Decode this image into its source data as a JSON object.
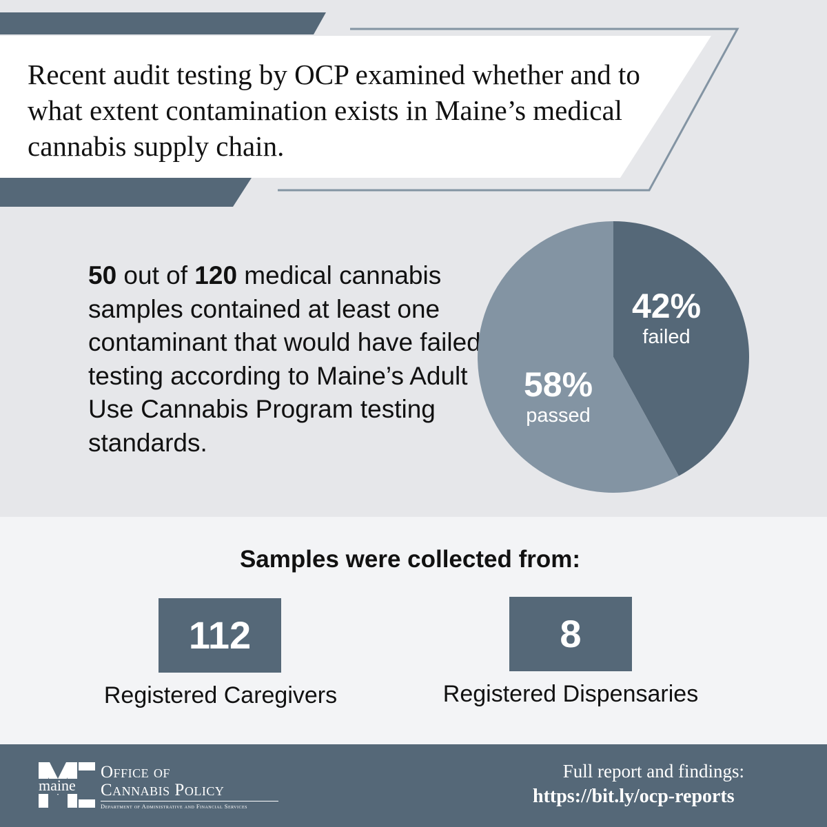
{
  "headline": "Recent audit testing by OCP examined whether and to what extent contamination exists in Maine’s medical cannabis supply chain.",
  "fact": {
    "n_failed": "50",
    "text_a": " out of ",
    "n_total": "120",
    "text_b": " medical cannabis samples contained at least one contaminant that would have failed testing according to Maine’s Adult Use Cannabis Program testing standards."
  },
  "chart_data": {
    "type": "pie",
    "title": "",
    "slices": [
      {
        "name": "failed",
        "value": 42,
        "label_pct": "42%",
        "label": "failed",
        "color": "#556878"
      },
      {
        "name": "passed",
        "value": 58,
        "label_pct": "58%",
        "label": "passed",
        "color": "#8394a3"
      }
    ]
  },
  "collection": {
    "title": "Samples were collected from:",
    "items": [
      {
        "count": "112",
        "label": "Registered Caregivers"
      },
      {
        "count": "8",
        "label": "Registered Dispensaries"
      }
    ]
  },
  "footer": {
    "logo_word": "maine",
    "org_line1": "Office of",
    "org_line2": "Cannabis Policy",
    "org_dept": "Department of Administrative and Financial Services",
    "report_label": "Full report and findings:",
    "report_url": "https://bit.ly/ocp-reports"
  },
  "colors": {
    "dark": "#556878",
    "light": "#8394a3",
    "bg_top": "#e6e7ea",
    "bg_mid": "#f3f4f6"
  }
}
